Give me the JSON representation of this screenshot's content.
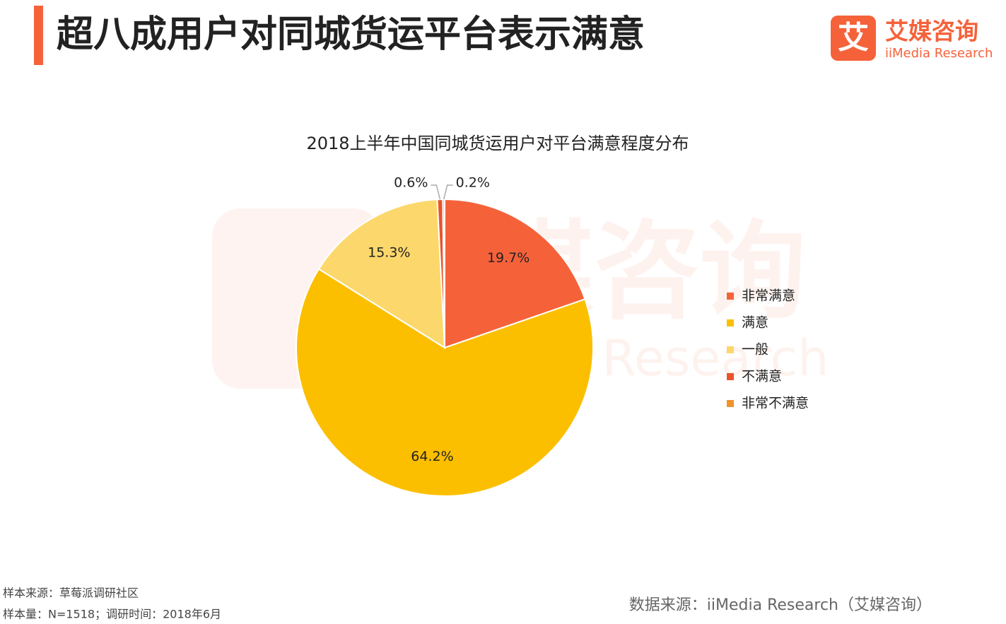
{
  "header": {
    "title": "超八成用户对同城货运平台表示满意"
  },
  "logo": {
    "name": "艾媒咨询",
    "mark": "艾",
    "english": "iiMedia Research"
  },
  "chart_data": {
    "type": "pie",
    "title": "2018上半年中国同城货运用户对平台满意程度分布",
    "categories": [
      "非常满意",
      "满意",
      "一般",
      "不满意",
      "非常不满意"
    ],
    "values": [
      19.7,
      64.2,
      15.3,
      0.6,
      0.2
    ],
    "value_labels": [
      "19.7%",
      "64.2%",
      "15.3%",
      "0.6%",
      "0.2%"
    ],
    "colors": [
      "#f5623a",
      "#fbbf00",
      "#fcd76b",
      "#e8552d",
      "#f0932a"
    ],
    "legend": "right"
  },
  "footnotes": [
    "样本来源：草莓派调研社区",
    "样本量：N=1518；调研时间：2018年6月"
  ],
  "source": "数据来源：iiMedia Research（艾媒咨询）"
}
